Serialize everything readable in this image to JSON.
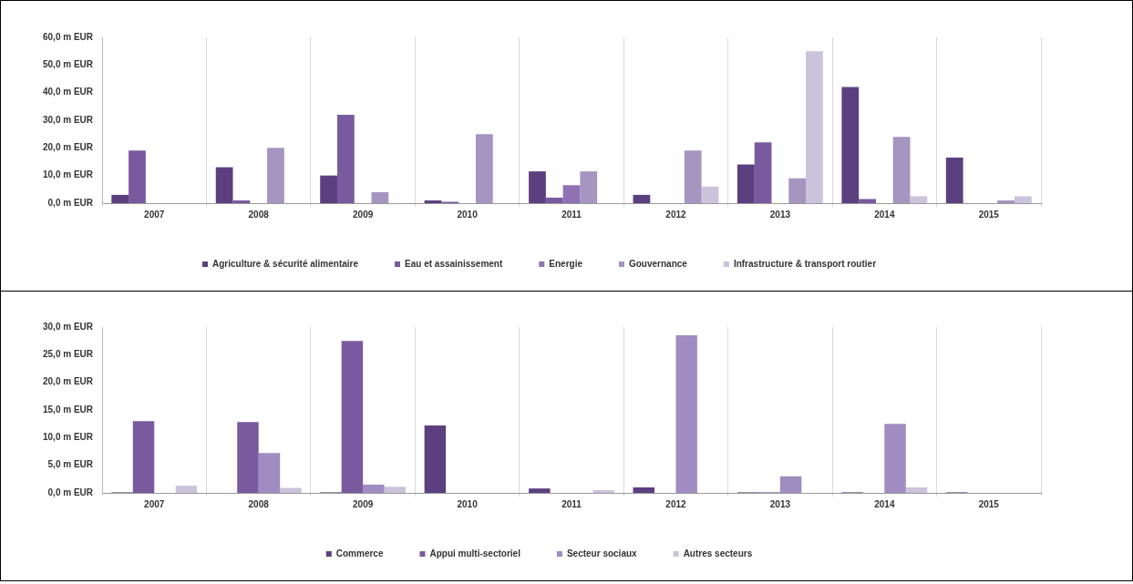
{
  "chart_data": [
    {
      "type": "bar",
      "categories": [
        "2007",
        "2008",
        "2009",
        "2010",
        "2011",
        "2012",
        "2013",
        "2014",
        "2015"
      ],
      "series": [
        {
          "name": "Agriculture & sécurité alimentaire",
          "color": "#5c3f7f",
          "values": [
            3,
            13,
            10,
            1,
            11.5,
            3,
            14,
            42,
            16.5
          ]
        },
        {
          "name": "Eau et assainissement",
          "color": "#7a5a9e",
          "values": [
            19,
            1,
            32,
            0.5,
            2,
            0,
            22,
            1.5,
            0
          ]
        },
        {
          "name": "Energie",
          "color": "#8f72b3",
          "values": [
            0,
            0,
            0,
            0,
            6.5,
            0,
            0,
            0,
            null
          ]
        },
        {
          "name": "Gouvernance",
          "color": "#a595c0",
          "values": [
            0,
            20,
            4,
            25,
            11.5,
            19,
            9,
            24,
            1
          ]
        },
        {
          "name": "Infrastructure & transport routier",
          "color": "#cbc2db",
          "values": [
            0,
            0,
            0,
            0,
            0,
            6,
            55,
            2.5,
            2.5
          ]
        }
      ],
      "ylim": [
        0,
        60
      ],
      "yticks": [
        {
          "value": 0,
          "label": "0,0 m EUR"
        },
        {
          "value": 10,
          "label": "10,0 m EUR"
        },
        {
          "value": 20,
          "label": "20,0 m EUR"
        },
        {
          "value": 30,
          "label": "30,0 m EUR"
        },
        {
          "value": 40,
          "label": "40,0 m EUR"
        },
        {
          "value": 50,
          "label": "50,0 m EUR"
        },
        {
          "value": 60,
          "label": "60,0 m EUR"
        }
      ],
      "grid": "x",
      "legend": "bottom"
    },
    {
      "type": "bar",
      "categories": [
        "2007",
        "2008",
        "2009",
        "2010",
        "2011",
        "2012",
        "2013",
        "2014",
        "2015"
      ],
      "series": [
        {
          "name": "Commerce",
          "color": "#5c3f7f",
          "values": [
            0.1,
            0,
            0.1,
            12.2,
            0.8,
            1,
            0.1,
            0.1,
            0.1
          ]
        },
        {
          "name": "Appui multi-sectoriel",
          "color": "#7a5a9e",
          "values": [
            13,
            12.8,
            27.5,
            0,
            0,
            0,
            0.1,
            0,
            0
          ]
        },
        {
          "name": "Secteur sociaux",
          "color": "#a08cc0",
          "values": [
            0,
            7.2,
            1.5,
            null,
            0,
            28.5,
            3,
            12.5,
            null
          ]
        },
        {
          "name": "Autres secteurs",
          "color": "#cbc2db",
          "values": [
            1.3,
            0.9,
            1.1,
            0,
            0.5,
            0,
            0,
            1,
            0
          ]
        }
      ],
      "ylim": [
        0,
        30
      ],
      "yticks": [
        {
          "value": 0,
          "label": "0,0 m EUR"
        },
        {
          "value": 5,
          "label": "5,0 m EUR"
        },
        {
          "value": 10,
          "label": "10,0 m EUR"
        },
        {
          "value": 15,
          "label": "15,0 m EUR"
        },
        {
          "value": 20,
          "label": "20,0 m EUR"
        },
        {
          "value": 25,
          "label": "25,0 m EUR"
        },
        {
          "value": 30,
          "label": "30,0 m EUR"
        }
      ],
      "grid": "x",
      "legend": "bottom"
    }
  ]
}
